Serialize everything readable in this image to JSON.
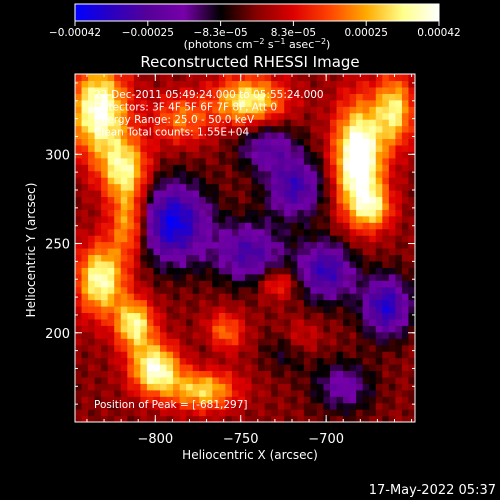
{
  "chart_data": {
    "type": "heatmap",
    "title": "Reconstructed RHESSI Image",
    "xlabel": "Heliocentric X (arcsec)",
    "ylabel": "Heliocentric Y (arcsec)",
    "xlim": [
      -847,
      -648
    ],
    "ylim": [
      150,
      345
    ],
    "x_ticks": [
      {
        "value": -800,
        "label": "−800"
      },
      {
        "value": -750,
        "label": "−750"
      },
      {
        "value": -700,
        "label": "−700"
      }
    ],
    "y_ticks": [
      {
        "value": 200,
        "label": "200"
      },
      {
        "value": 250,
        "label": "250"
      },
      {
        "value": 300,
        "label": "300"
      }
    ],
    "annotations": [
      "22-Dec-2011 05:49:24.000 to 05:55:24.000",
      "Detectors: 3F 4F 5F 6F 7F 8F, Att 0",
      "Energy Range: 25.0 - 50.0 keV",
      "Clean     Total counts: 1.55E+04"
    ],
    "peak_text": "Position of Peak = [-681,297]",
    "peak": [
      -681,
      297
    ],
    "colorbar": {
      "min": -0.00042,
      "max": 0.00042,
      "tick_labels": [
        "−0.00042",
        "−0.00025",
        "−8.3e−05",
        "8.3e−05",
        "0.00025",
        "0.00042"
      ],
      "unit_parts": [
        "(photons cm",
        "−2",
        " s",
        "−1",
        " asec",
        "−2",
        ")"
      ],
      "stops": [
        "#0000ff",
        "#2a00c0",
        "#550099",
        "#7700aa",
        "#000000",
        "#880000",
        "#dd0000",
        "#ff4400",
        "#ffaa00",
        "#ffff88",
        "#ffffff"
      ]
    },
    "sources": [
      {
        "x": -833,
        "y": 325,
        "amp": 0.00042,
        "sx": 12,
        "sy": 18
      },
      {
        "x": -818,
        "y": 292,
        "amp": 0.00032,
        "sx": 10,
        "sy": 12
      },
      {
        "x": -815,
        "y": 262,
        "amp": 0.0003,
        "sx": 8,
        "sy": 14
      },
      {
        "x": -832,
        "y": 230,
        "amp": 0.00038,
        "sx": 10,
        "sy": 14
      },
      {
        "x": -812,
        "y": 205,
        "amp": 0.00035,
        "sx": 8,
        "sy": 10
      },
      {
        "x": -800,
        "y": 180,
        "amp": 0.0004,
        "sx": 10,
        "sy": 10
      },
      {
        "x": -772,
        "y": 168,
        "amp": 0.0003,
        "sx": 14,
        "sy": 8
      },
      {
        "x": -760,
        "y": 200,
        "amp": 0.00025,
        "sx": 8,
        "sy": 8
      },
      {
        "x": -745,
        "y": 330,
        "amp": 0.00035,
        "sx": 15,
        "sy": 10
      },
      {
        "x": -785,
        "y": 320,
        "amp": 0.0002,
        "sx": 12,
        "sy": 10
      },
      {
        "x": -681,
        "y": 297,
        "amp": 0.0005,
        "sx": 10,
        "sy": 22
      },
      {
        "x": -660,
        "y": 325,
        "amp": 0.00032,
        "sx": 8,
        "sy": 14
      },
      {
        "x": -672,
        "y": 270,
        "amp": 0.00022,
        "sx": 8,
        "sy": 8
      },
      {
        "x": -728,
        "y": 228,
        "amp": 0.00018,
        "sx": 8,
        "sy": 6
      },
      {
        "x": -715,
        "y": 195,
        "amp": 0.00015,
        "sx": 8,
        "sy": 8
      },
      {
        "x": -790,
        "y": 262,
        "amp": -0.0004,
        "sx": 15,
        "sy": 16
      },
      {
        "x": -745,
        "y": 245,
        "amp": -0.00028,
        "sx": 14,
        "sy": 12
      },
      {
        "x": -718,
        "y": 282,
        "amp": -0.0003,
        "sx": 12,
        "sy": 12
      },
      {
        "x": -700,
        "y": 235,
        "amp": -0.00032,
        "sx": 12,
        "sy": 12
      },
      {
        "x": -735,
        "y": 305,
        "amp": -0.00022,
        "sx": 12,
        "sy": 10
      },
      {
        "x": -665,
        "y": 215,
        "amp": -0.00035,
        "sx": 10,
        "sy": 12
      },
      {
        "x": -720,
        "y": 190,
        "amp": -0.00015,
        "sx": 10,
        "sy": 8
      },
      {
        "x": -765,
        "y": 195,
        "amp": -8e-05,
        "sx": 8,
        "sy": 8
      },
      {
        "x": -690,
        "y": 170,
        "amp": -0.0002,
        "sx": 12,
        "sy": 10
      }
    ],
    "grid": false,
    "legend": "none"
  },
  "footer": {
    "timestamp": "17-May-2022 05:37"
  }
}
